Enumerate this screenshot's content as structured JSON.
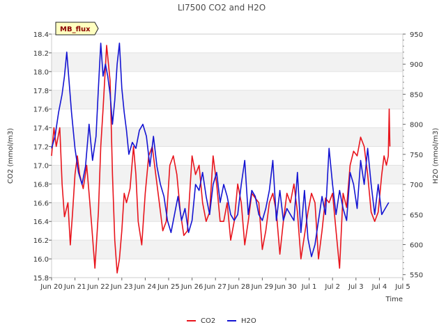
{
  "chart_data": {
    "type": "line",
    "title": "LI7500 CO2 and H2O",
    "xlabel": "Time",
    "ylabel_left": "CO2 (mmol/m3)",
    "ylabel_right": "H2O (mmol/m3)",
    "badge": "MB_flux",
    "x_categories": [
      "Jun 20",
      "Jun 21",
      "Jun 22",
      "Jun 23",
      "Jun 24",
      "Jun 25",
      "Jun 26",
      "Jun 27",
      "Jun 28",
      "Jun 29",
      "Jun 30",
      "Jul 1",
      "Jul 2",
      "Jul 3",
      "Jul 4",
      "Jul 5"
    ],
    "xlim": [
      0,
      15
    ],
    "ylim_left": [
      15.8,
      18.4
    ],
    "ylim_right": [
      545,
      950
    ],
    "yticks_left": [
      15.8,
      16.0,
      16.2,
      16.4,
      16.6,
      16.8,
      17.0,
      17.2,
      17.4,
      17.6,
      17.8,
      18.0,
      18.2,
      18.4
    ],
    "ytick_labels_left": [
      "15.8",
      "16.0",
      "16.2",
      "16.4",
      "16.6",
      "16.8",
      "17.0",
      "17.2",
      "17.4",
      "17.6",
      "17.8",
      "18.0",
      "18.2",
      "18.4"
    ],
    "yticks_right": [
      550,
      600,
      650,
      700,
      750,
      800,
      850,
      900,
      950
    ],
    "ytick_labels_right": [
      "550",
      "600",
      "650",
      "700",
      "750",
      "800",
      "850",
      "900",
      "950"
    ],
    "grid": "horizontal bands",
    "legend_position": "bottom-center",
    "series": [
      {
        "name": "CO2",
        "axis": "left",
        "color": "#e8141c",
        "x": [
          0.0,
          0.1,
          0.2,
          0.35,
          0.45,
          0.55,
          0.7,
          0.8,
          0.9,
          1.0,
          1.1,
          1.2,
          1.35,
          1.5,
          1.6,
          1.7,
          1.85,
          2.0,
          2.1,
          2.2,
          2.35,
          2.5,
          2.6,
          2.7,
          2.8,
          2.9,
          3.0,
          3.1,
          3.2,
          3.35,
          3.5,
          3.6,
          3.7,
          3.85,
          4.0,
          4.15,
          4.3,
          4.45,
          4.6,
          4.75,
          4.9,
          5.05,
          5.2,
          5.35,
          5.5,
          5.65,
          5.8,
          6.0,
          6.15,
          6.3,
          6.45,
          6.6,
          6.75,
          6.9,
          7.05,
          7.2,
          7.35,
          7.5,
          7.65,
          7.8,
          7.95,
          8.1,
          8.25,
          8.4,
          8.55,
          8.7,
          8.85,
          9.0,
          9.15,
          9.3,
          9.45,
          9.6,
          9.75,
          9.9,
          10.05,
          10.2,
          10.35,
          10.5,
          10.65,
          10.8,
          10.95,
          11.1,
          11.25,
          11.4,
          11.55,
          11.7,
          11.85,
          12.0,
          12.15,
          12.3,
          12.45,
          12.6,
          12.75,
          12.9,
          13.05,
          13.2,
          13.35,
          13.5,
          13.65,
          13.8,
          13.95,
          14.1,
          14.2,
          14.3,
          14.38,
          14.42,
          14.45
        ],
        "values": [
          17.1,
          17.4,
          17.2,
          17.4,
          16.8,
          16.45,
          16.6,
          16.15,
          16.5,
          16.9,
          17.1,
          16.9,
          16.75,
          17.0,
          16.7,
          16.4,
          15.9,
          16.5,
          17.2,
          17.6,
          18.28,
          17.9,
          16.9,
          16.2,
          15.85,
          16.0,
          16.3,
          16.7,
          16.6,
          16.75,
          17.2,
          16.9,
          16.4,
          16.15,
          16.7,
          17.1,
          17.2,
          16.9,
          16.6,
          16.3,
          16.4,
          17.0,
          17.1,
          16.9,
          16.5,
          16.25,
          16.3,
          17.1,
          16.9,
          17.0,
          16.6,
          16.4,
          16.5,
          17.1,
          16.8,
          16.4,
          16.4,
          16.6,
          16.2,
          16.4,
          16.8,
          16.6,
          16.15,
          16.4,
          16.7,
          16.65,
          16.6,
          16.1,
          16.3,
          16.6,
          16.7,
          16.5,
          16.05,
          16.4,
          16.7,
          16.6,
          16.8,
          16.5,
          16.0,
          16.25,
          16.5,
          16.7,
          16.6,
          16.0,
          16.3,
          16.65,
          16.6,
          16.7,
          16.3,
          15.9,
          16.7,
          16.55,
          17.0,
          17.15,
          17.1,
          17.3,
          17.2,
          16.9,
          16.5,
          16.4,
          16.5,
          16.9,
          17.1,
          17.0,
          17.1,
          17.6,
          17.2
        ]
      },
      {
        "name": "H2O",
        "axis": "right",
        "color": "#1414d2",
        "x": [
          0.0,
          0.15,
          0.3,
          0.45,
          0.55,
          0.65,
          0.75,
          0.85,
          1.0,
          1.15,
          1.3,
          1.45,
          1.6,
          1.75,
          1.9,
          2.0,
          2.1,
          2.2,
          2.3,
          2.4,
          2.5,
          2.6,
          2.7,
          2.8,
          2.9,
          3.0,
          3.1,
          3.2,
          3.3,
          3.45,
          3.6,
          3.75,
          3.9,
          4.05,
          4.2,
          4.35,
          4.5,
          4.65,
          4.8,
          4.95,
          5.1,
          5.25,
          5.4,
          5.55,
          5.7,
          5.85,
          6.0,
          6.15,
          6.3,
          6.45,
          6.6,
          6.75,
          6.9,
          7.05,
          7.2,
          7.35,
          7.5,
          7.65,
          7.8,
          7.95,
          8.1,
          8.25,
          8.4,
          8.55,
          8.7,
          8.85,
          9.0,
          9.15,
          9.3,
          9.45,
          9.6,
          9.75,
          9.9,
          10.05,
          10.2,
          10.35,
          10.5,
          10.65,
          10.8,
          10.95,
          11.1,
          11.25,
          11.4,
          11.55,
          11.7,
          11.85,
          12.0,
          12.15,
          12.3,
          12.45,
          12.6,
          12.75,
          12.9,
          13.05,
          13.2,
          13.35,
          13.5,
          13.65,
          13.8,
          13.95,
          14.1,
          14.25,
          14.4
        ],
        "values": [
          760,
          780,
          820,
          850,
          880,
          920,
          870,
          820,
          760,
          720,
          700,
          730,
          800,
          740,
          780,
          860,
          935,
          880,
          900,
          880,
          850,
          800,
          840,
          900,
          935,
          860,
          820,
          790,
          750,
          770,
          760,
          790,
          800,
          780,
          730,
          780,
          730,
          700,
          680,
          640,
          620,
          650,
          680,
          640,
          660,
          620,
          640,
          700,
          690,
          720,
          680,
          650,
          700,
          720,
          670,
          700,
          680,
          650,
          640,
          650,
          700,
          740,
          650,
          690,
          680,
          650,
          640,
          660,
          690,
          740,
          640,
          690,
          640,
          660,
          650,
          640,
          720,
          620,
          690,
          610,
          580,
          600,
          640,
          680,
          650,
          760,
          700,
          650,
          690,
          660,
          640,
          720,
          700,
          660,
          740,
          700,
          760,
          700,
          650,
          700,
          650,
          660,
          670
        ]
      }
    ]
  }
}
